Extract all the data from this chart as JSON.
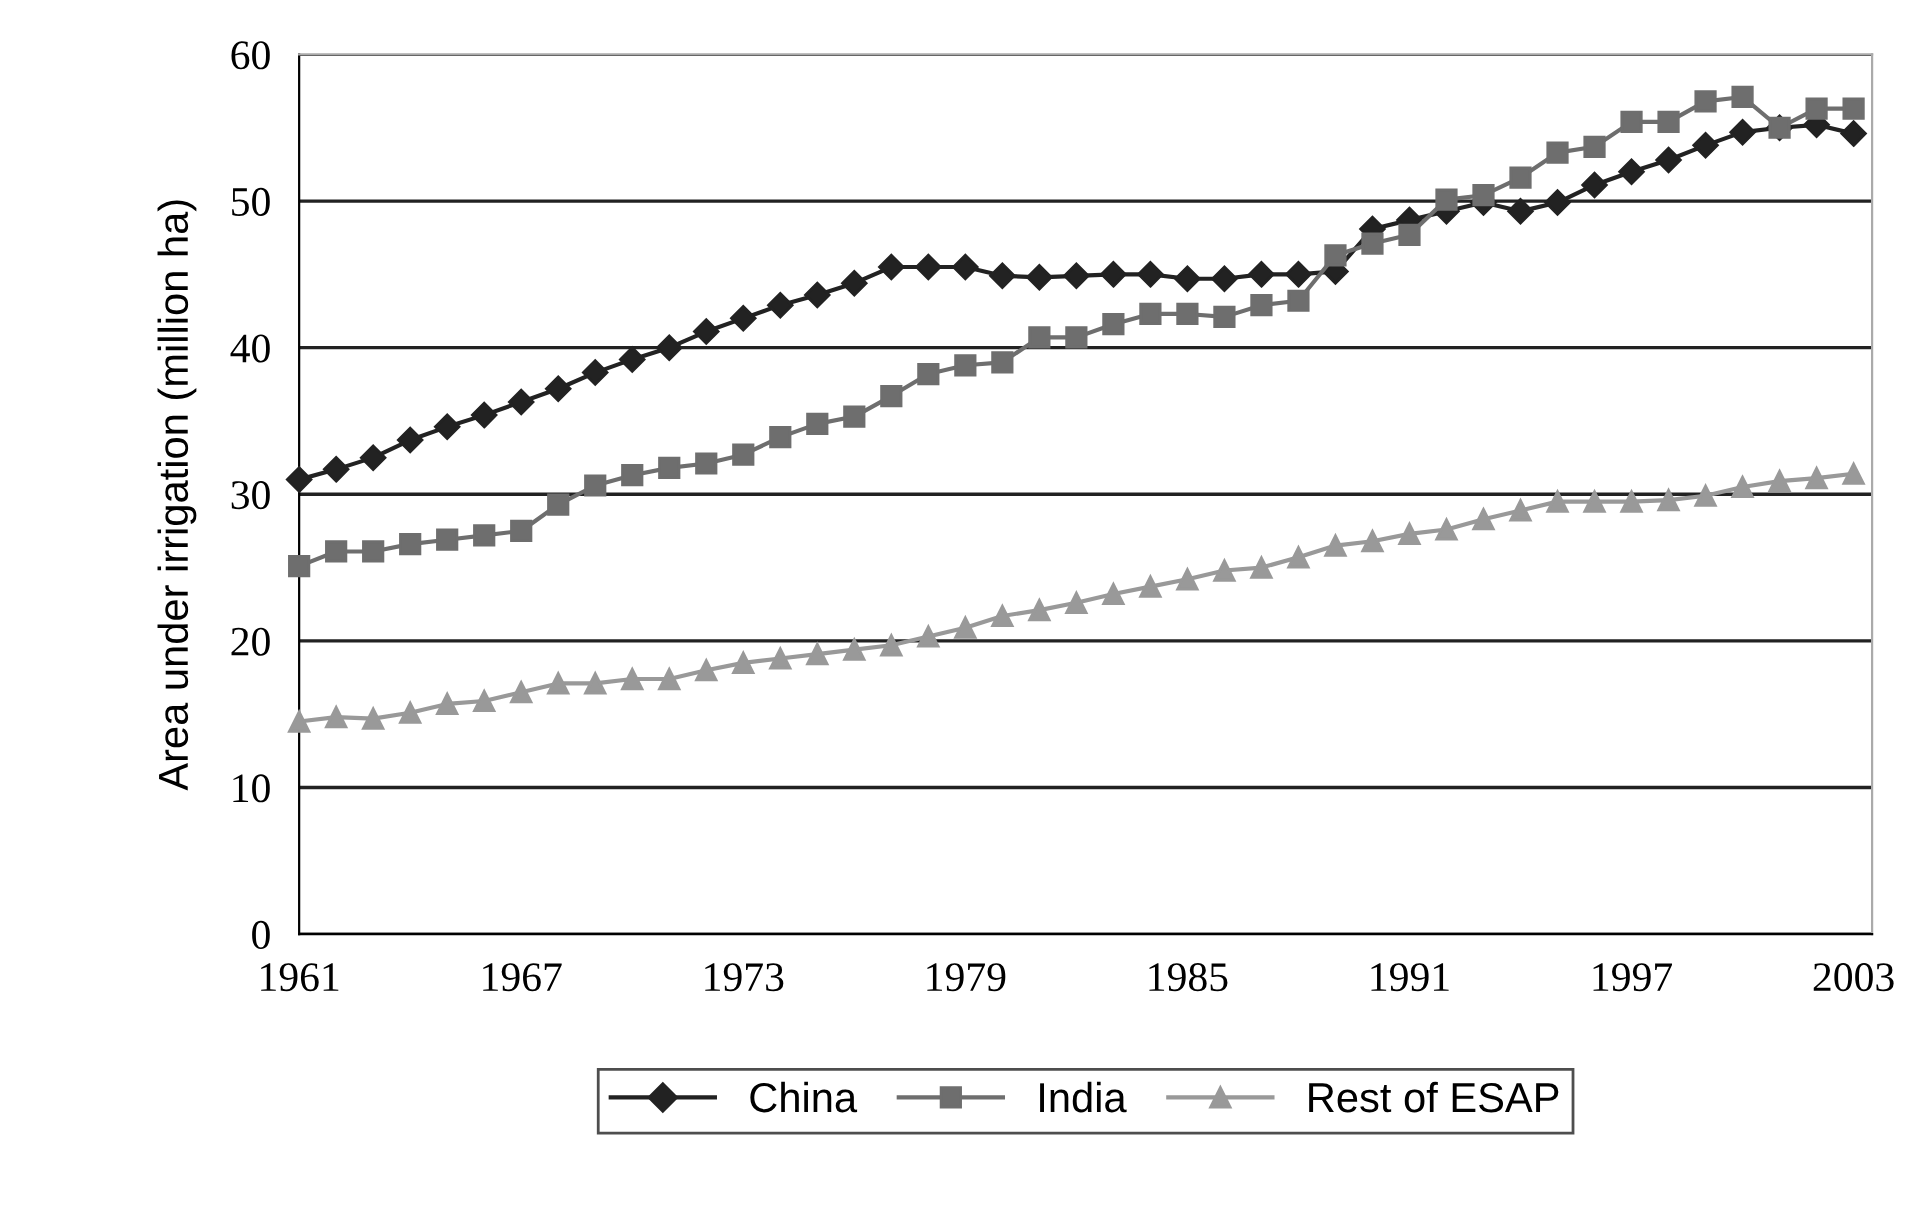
{
  "chart_data": {
    "type": "line",
    "ylabel": "Area under irrigation (million ha)",
    "x": [
      1961,
      1962,
      1963,
      1964,
      1965,
      1966,
      1967,
      1968,
      1969,
      1970,
      1971,
      1972,
      1973,
      1974,
      1975,
      1976,
      1977,
      1978,
      1979,
      1980,
      1981,
      1982,
      1983,
      1984,
      1985,
      1986,
      1987,
      1988,
      1989,
      1990,
      1991,
      1992,
      1993,
      1994,
      1995,
      1996,
      1997,
      1998,
      1999,
      2000,
      2001,
      2002,
      2003
    ],
    "series": [
      {
        "name": "China",
        "color": "#222222",
        "marker": "diamond",
        "values": [
          31.0,
          31.7,
          32.5,
          33.7,
          34.6,
          35.4,
          36.3,
          37.2,
          38.3,
          39.2,
          40.0,
          41.1,
          42.0,
          42.9,
          43.6,
          44.4,
          45.5,
          45.5,
          45.5,
          44.9,
          44.8,
          44.9,
          45.0,
          45.0,
          44.7,
          44.7,
          45.0,
          45.0,
          45.2,
          48.1,
          48.7,
          49.3,
          49.9,
          49.3,
          49.9,
          51.1,
          52.0,
          52.8,
          53.8,
          54.7,
          55.0,
          55.2,
          54.6
        ]
      },
      {
        "name": "India",
        "color": "#6e6e6e",
        "marker": "square",
        "values": [
          25.1,
          26.1,
          26.1,
          26.6,
          26.9,
          27.2,
          27.5,
          29.3,
          30.6,
          31.3,
          31.8,
          32.1,
          32.7,
          33.9,
          34.8,
          35.3,
          36.7,
          38.2,
          38.8,
          39.0,
          40.7,
          40.7,
          41.6,
          42.3,
          42.3,
          42.1,
          42.9,
          43.2,
          46.3,
          47.1,
          47.7,
          50.1,
          50.4,
          51.6,
          53.3,
          53.7,
          55.4,
          55.4,
          56.8,
          57.1,
          55.0,
          56.3,
          56.3
        ]
      },
      {
        "name": "Rest of ESAP",
        "color": "#999999",
        "marker": "triangle",
        "values": [
          14.5,
          14.8,
          14.7,
          15.1,
          15.7,
          15.9,
          16.5,
          17.1,
          17.1,
          17.4,
          17.4,
          18.0,
          18.5,
          18.8,
          19.1,
          19.4,
          19.7,
          20.3,
          20.9,
          21.7,
          22.1,
          22.6,
          23.2,
          23.7,
          24.2,
          24.8,
          25.0,
          25.7,
          26.5,
          26.8,
          27.3,
          27.6,
          28.3,
          28.9,
          29.5,
          29.5,
          29.5,
          29.6,
          29.9,
          30.5,
          30.9,
          31.1,
          31.4
        ]
      }
    ],
    "xlim": [
      1961,
      2003.5
    ],
    "xticks": [
      1961,
      1967,
      1973,
      1979,
      1985,
      1991,
      1997,
      2003
    ],
    "ylim": [
      0,
      60
    ],
    "yticks": [
      0,
      10,
      20,
      30,
      40,
      50,
      60
    ],
    "grid": "y",
    "legend": "bottom",
    "line_style": "solid"
  }
}
